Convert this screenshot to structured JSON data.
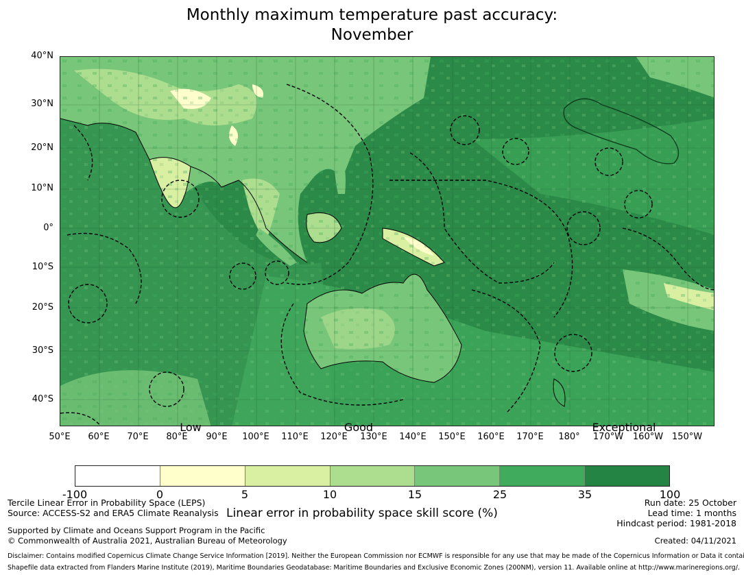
{
  "title": {
    "line1": "Monthly maximum temperature past accuracy:",
    "line2": "November"
  },
  "map": {
    "latitude_labels": [
      "40°N",
      "30°N",
      "20°N",
      "10°N",
      "0°",
      "10°S",
      "20°S",
      "30°S",
      "40°S"
    ],
    "longitude_labels": [
      "50°E",
      "60°E",
      "70°E",
      "80°E",
      "90°E",
      "100°E",
      "110°E",
      "120°E",
      "130°E",
      "140°E",
      "150°E",
      "160°E",
      "170°E",
      "180°",
      "170°W",
      "160°W",
      "150°W"
    ],
    "skill_labels": [
      "Low",
      "Good",
      "Exceptional"
    ],
    "colors": {
      "ocean": "#2b8a47",
      "coast": "#000000",
      "land_light": "#7ec67a",
      "land_pale": "#d9f0a3",
      "land_cream": "#ffffcc",
      "mid": "#41ab5d"
    }
  },
  "colorbar": {
    "ticks": [
      "-100",
      "0",
      "5",
      "10",
      "15",
      "25",
      "35",
      "100"
    ],
    "colors": [
      "#ffffff",
      "#ffffcc",
      "#d9f0a3",
      "#addd8e",
      "#78c679",
      "#41ab5d",
      "#238443"
    ],
    "label": "Linear error in probability space skill score (%)"
  },
  "footer": {
    "method": "Tercile Linear Error in Probability Space (LEPS)",
    "source": "Source: ACCESS-S2 and ERA5 Climate Reanalysis",
    "run_date": "Run date: 25 October",
    "lead_time": "Lead time: 1 months",
    "hindcast": "Hindcast period: 1981-2018",
    "support": "Supported by Climate and Oceans Support Program in the Pacific",
    "copyright": "© Commonwealth of Australia 2021, Australian Bureau of Meteorology",
    "created": "Created: 04/11/2021",
    "disclaimer": "Disclaimer: Contains modified Copernicus Climate Change Service Information [2019]. Neither the European Commission nor ECMWF is responsible for any use that may be made of the Copernicus Information or Data it contains.",
    "shapefile": "Shapefile data extracted from Flanders Marine Institute (2019), Maritime Boundaries Geodatabase: Maritime Boundaries and Exclusive Economic Zones (200NM), version 11. Available online at http://www.marineregions.org/."
  }
}
